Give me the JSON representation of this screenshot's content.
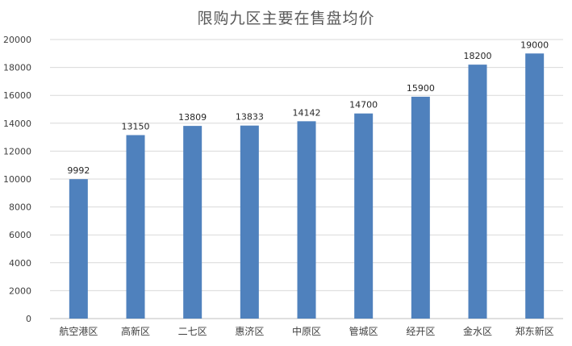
{
  "chart_data": {
    "type": "bar",
    "title": "限购九区主要在售盘均价",
    "xlabel": "",
    "ylabel": "",
    "categories": [
      "航空港区",
      "高新区",
      "二七区",
      "惠济区",
      "中原区",
      "管城区",
      "经开区",
      "金水区",
      "郑东新区"
    ],
    "values": [
      9992,
      13150,
      13809,
      13833,
      14142,
      14700,
      15900,
      18200,
      19000
    ],
    "ylim": [
      0,
      20000
    ],
    "yticks": [
      0,
      2000,
      4000,
      6000,
      8000,
      10000,
      12000,
      14000,
      16000,
      18000,
      20000
    ],
    "data_labels": true,
    "grid": true,
    "legend": "none",
    "colors": {
      "bar": "#4f81bd",
      "grid": "#d9d9d9",
      "axis": "#bfbfbf"
    }
  }
}
